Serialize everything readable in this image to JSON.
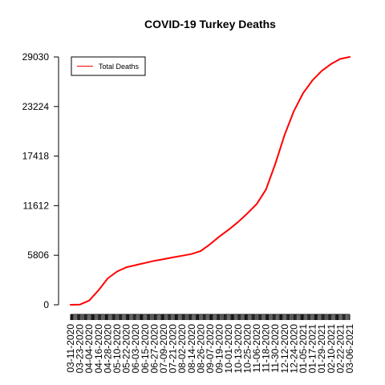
{
  "chart_data": {
    "type": "line",
    "title": "COVID-19 Turkey Deaths",
    "xlabel": "",
    "ylabel": "",
    "ylim": [
      0,
      29030
    ],
    "yticks": [
      0,
      5806,
      11612,
      17418,
      23224,
      29030
    ],
    "xtick_labels": [
      "03-11-2020",
      "03-23-2020",
      "04-04-2020",
      "04-16-2020",
      "04-28-2020",
      "05-10-2020",
      "05-22-2020",
      "06-03-2020",
      "06-15-2020",
      "06-27-2020",
      "07-09-2020",
      "07-21-2020",
      "08-02-2020",
      "08-14-2020",
      "08-26-2020",
      "09-07-2020",
      "09-19-2020",
      "10-01-2020",
      "10-13-2020",
      "10-25-2020",
      "11-06-2020",
      "11-18-2020",
      "11-30-2020",
      "12-12-2020",
      "12-24-2020",
      "01-05-2021",
      "01-17-2021",
      "01-29-2021",
      "02-10-2021",
      "02-22-2021",
      "03-06-2021"
    ],
    "legend_position": "top-left",
    "grid": false,
    "series": [
      {
        "name": "Total Deaths",
        "color": "#ff0000",
        "x": [
          "03-11-2020",
          "03-23-2020",
          "04-04-2020",
          "04-16-2020",
          "04-28-2020",
          "05-10-2020",
          "05-22-2020",
          "06-03-2020",
          "06-15-2020",
          "06-27-2020",
          "07-09-2020",
          "07-21-2020",
          "08-02-2020",
          "08-14-2020",
          "08-26-2020",
          "09-07-2020",
          "09-19-2020",
          "10-01-2020",
          "10-13-2020",
          "10-25-2020",
          "11-06-2020",
          "11-18-2020",
          "11-30-2020",
          "12-12-2020",
          "12-24-2020",
          "01-05-2021",
          "01-17-2021",
          "01-29-2021",
          "02-10-2021",
          "02-22-2021",
          "03-06-2021"
        ],
        "values": [
          0,
          30,
          500,
          1700,
          3100,
          3900,
          4400,
          4650,
          4900,
          5150,
          5350,
          5550,
          5750,
          5950,
          6300,
          7100,
          8000,
          8800,
          9700,
          10700,
          11800,
          13500,
          16500,
          19900,
          22700,
          24800,
          26300,
          27400,
          28200,
          28800,
          29030
        ]
      }
    ]
  }
}
